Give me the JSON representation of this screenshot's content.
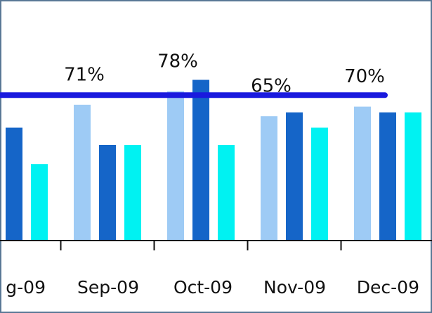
{
  "chart_data": {
    "type": "bar",
    "categories": [
      "g-09",
      "Sep-09",
      "Oct-09",
      "Nov-09",
      "Dec-09"
    ],
    "series": [
      {
        "color": "#9ecbf5",
        "values": [
          null,
          71,
          78,
          65,
          70
        ],
        "value_labels": [
          null,
          "71%",
          "78%",
          "65%",
          "70%"
        ]
      },
      {
        "color": "#1565c8",
        "values": [
          59,
          50,
          84,
          67,
          67
        ]
      },
      {
        "color": "#00f2f2",
        "values": [
          40,
          50,
          50,
          59,
          67
        ]
      }
    ],
    "ylim": [
      0,
      100
    ],
    "target_line": {
      "value": 76,
      "color": "#1a1ade"
    }
  }
}
